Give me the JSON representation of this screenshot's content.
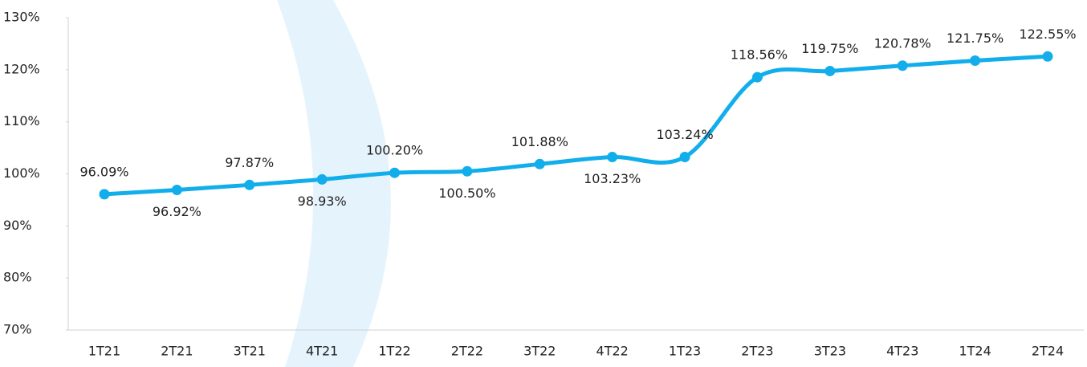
{
  "chart_data": {
    "type": "line",
    "categories": [
      "1T21",
      "2T21",
      "3T21",
      "4T21",
      "1T22",
      "2T22",
      "3T22",
      "4T22",
      "1T23",
      "2T23",
      "3T23",
      "4T23",
      "1T24",
      "2T24"
    ],
    "series": [
      {
        "color": "#12aeeb",
        "values": [
          96.09,
          96.92,
          97.87,
          98.93,
          100.2,
          100.5,
          101.88,
          103.23,
          103.24,
          118.56,
          119.75,
          120.78,
          121.75,
          122.55
        ],
        "value_labels": [
          "96.09%",
          "96.92%",
          "97.87%",
          "98.93%",
          "100.20%",
          "100.50%",
          "101.88%",
          "103.23%",
          "103.24%",
          "118.56%",
          "119.75%",
          "120.78%",
          "121.75%",
          "122.55%"
        ]
      }
    ],
    "ylim": [
      70,
      130
    ],
    "yticks": [
      {
        "value": 70,
        "label": "70%"
      },
      {
        "value": 80,
        "label": "80%"
      },
      {
        "value": 90,
        "label": "90%"
      },
      {
        "value": 100,
        "label": "100%"
      },
      {
        "value": 110,
        "label": "110%"
      },
      {
        "value": 120,
        "label": "120%"
      },
      {
        "value": 130,
        "label": "130%"
      }
    ]
  }
}
